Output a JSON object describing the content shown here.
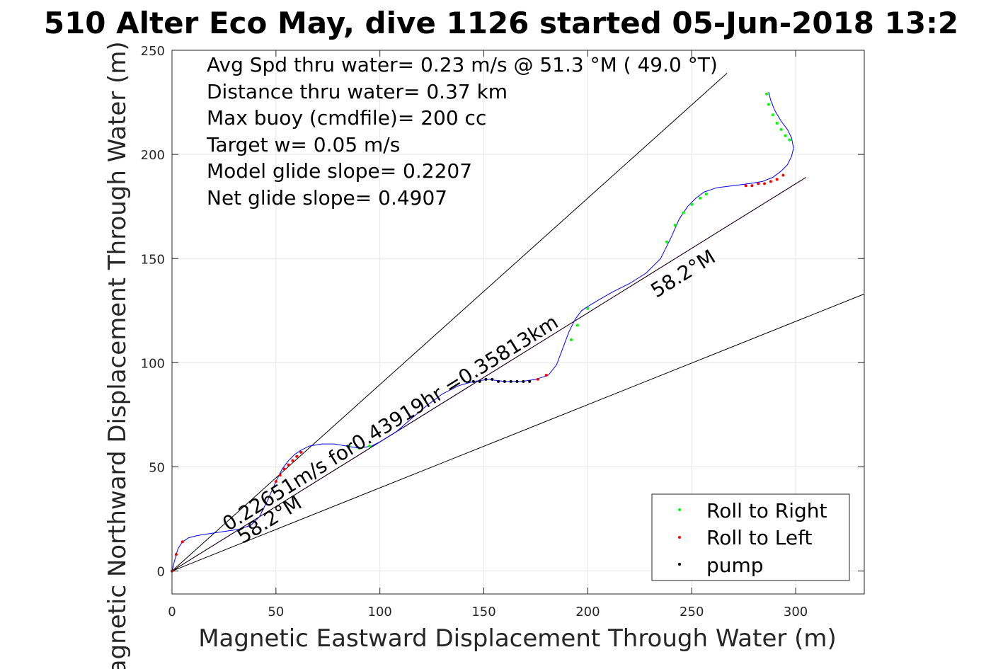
{
  "chart_data": {
    "type": "scatter",
    "title": "510 Alter Eco May, dive 1126 started 05-Jun-2018 13:2",
    "xlabel": "Magnetic Eastward Displacement Through Water (m)",
    "ylabel": "Magnetic Northward Displacement Through Water (m)",
    "xlim": [
      0,
      333
    ],
    "ylim": [
      -11,
      250
    ],
    "xticks": [
      0,
      50,
      100,
      150,
      200,
      250,
      300
    ],
    "yticks": [
      0,
      50,
      100,
      150,
      200,
      250
    ],
    "grid": true,
    "info_lines": [
      "Avg Spd thru water=  0.23 m/s @  51.3 °M ( 49.0 °T)",
      "Distance thru water=  0.37 km",
      "Max buoy (cmdfile)= 200 cc",
      "Target w= 0.05 m/s",
      "Model glide slope= 0.2207",
      "Net glide slope= 0.4907"
    ],
    "annotations": [
      {
        "text": "0.22651m/s for0.43919hr =0.35813km",
        "x": 27,
        "y": 19,
        "angle_deg": 31.8
      },
      {
        "text": "58.2°M",
        "x": 34,
        "y": 13,
        "angle_deg": 31.8
      },
      {
        "text": "58.2°M",
        "x": 233,
        "y": 131,
        "angle_deg": 31.8
      }
    ],
    "legend": {
      "position": "bottom-right",
      "entries": [
        {
          "label": "Roll to Right",
          "color": "#00ff00"
        },
        {
          "label": "Roll to Left",
          "color": "#ff0000"
        },
        {
          "label": "pump",
          "color": "#000000"
        }
      ]
    },
    "reference_lines": [
      {
        "name": "",
        "color": "#000000",
        "x": [
          0,
          267
        ],
        "y": [
          0,
          239
        ]
      },
      {
        "name": "",
        "color": "#000000",
        "x": [
          0,
          333
        ],
        "y": [
          0,
          133
        ]
      },
      {
        "name": "",
        "color": "#ff00ff",
        "x": [
          0,
          305
        ],
        "y": [
          0,
          189
        ]
      },
      {
        "name": "",
        "color": "#000000",
        "x": [
          0,
          305
        ],
        "y": [
          0,
          189
        ]
      }
    ],
    "track": {
      "color": "#0000ff",
      "x": [
        0,
        1,
        2,
        3,
        5,
        8,
        12,
        18,
        25,
        32,
        38,
        42,
        46,
        50,
        53,
        56,
        59,
        62,
        66,
        72,
        78,
        84,
        90,
        96,
        100,
        108,
        115,
        122,
        130,
        138,
        145,
        152,
        160,
        168,
        175,
        181,
        185,
        188,
        191,
        194,
        197,
        200,
        205,
        212,
        220,
        228,
        235,
        240,
        244,
        248,
        252,
        256,
        262,
        270,
        278,
        284,
        289,
        293,
        296,
        298,
        299,
        298,
        296,
        293,
        290,
        288,
        287
      ],
      "y": [
        0,
        4,
        8,
        11,
        14,
        16,
        17,
        18,
        19,
        20,
        22,
        26,
        34,
        43,
        49,
        53,
        56,
        58,
        60,
        61,
        61,
        60,
        59,
        60,
        62,
        67,
        73,
        79,
        85,
        89,
        91,
        92,
        91,
        91,
        92,
        94,
        99,
        107,
        115,
        121,
        125,
        127,
        130,
        134,
        138,
        143,
        150,
        160,
        169,
        175,
        179,
        182,
        184,
        185,
        186,
        187,
        189,
        192,
        195,
        199,
        203,
        208,
        212,
        216,
        221,
        226,
        230
      ]
    },
    "series": [
      {
        "name": "Roll to Right",
        "color": "#00ff00",
        "x": [
          85,
          90,
          95,
          192,
          195,
          200,
          238,
          242,
          246,
          250,
          254,
          257,
          286,
          287,
          289,
          291,
          293,
          295,
          297
        ],
        "y": [
          60,
          59,
          60,
          111,
          118,
          126,
          158,
          166,
          172,
          176,
          179,
          181,
          229,
          224,
          219,
          215,
          212,
          209,
          207
        ]
      },
      {
        "name": "Roll to Left",
        "color": "#ff0000",
        "x": [
          0,
          2,
          5,
          50,
          52,
          54,
          56,
          58,
          60,
          62,
          176,
          180,
          276,
          279,
          282,
          285,
          288,
          291,
          294
        ],
        "y": [
          0,
          8,
          14,
          43,
          46,
          49,
          51,
          53,
          55,
          57,
          92,
          94,
          185,
          185,
          186,
          186,
          187,
          188,
          190
        ]
      },
      {
        "name": "pump",
        "color": "#000000",
        "x": [
          145,
          148,
          151,
          154,
          157,
          160,
          163,
          166,
          169,
          172
        ],
        "y": [
          91,
          91,
          92,
          92,
          91,
          91,
          91,
          91,
          91,
          91
        ]
      }
    ]
  }
}
